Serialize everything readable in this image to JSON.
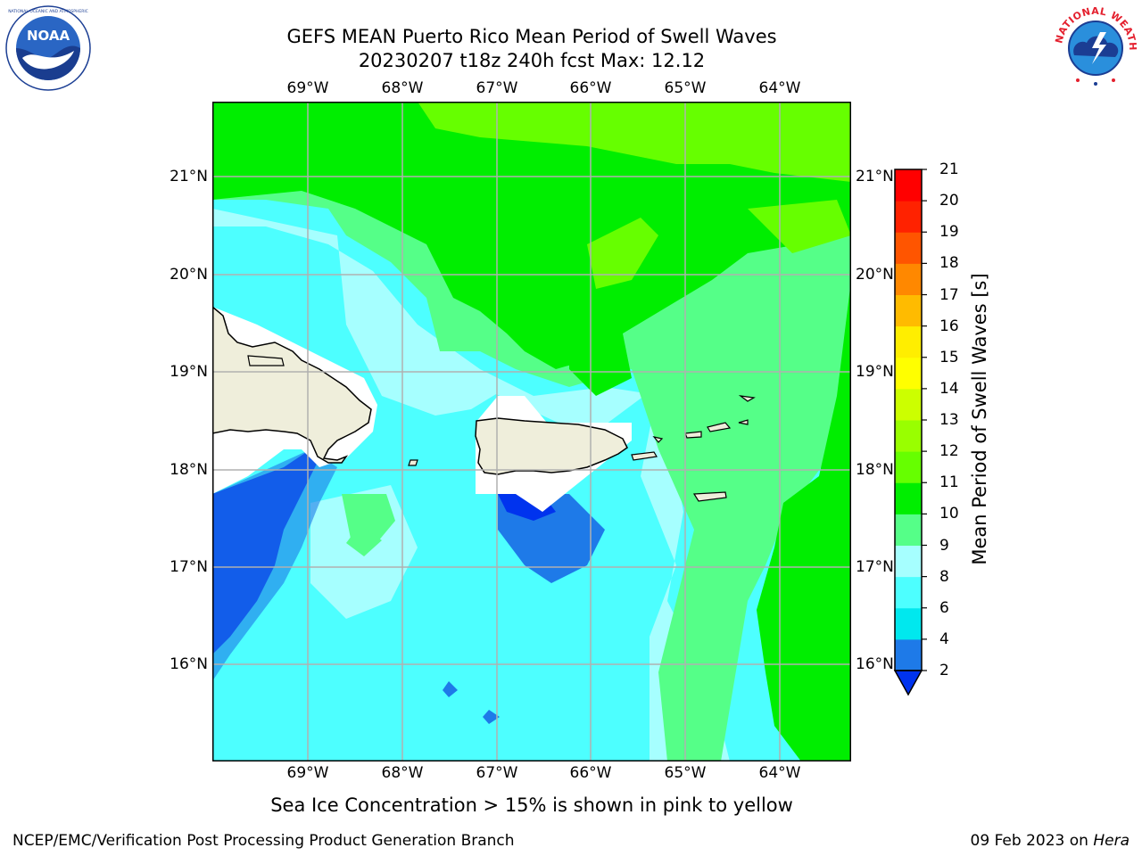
{
  "title_line1": "GEFS MEAN Puerto Rico Mean Period of Swell Waves",
  "title_line2": "20230207 t18z 240h fcst   Max: 12.12",
  "lon_labels": [
    "69°W",
    "68°W",
    "67°W",
    "66°W",
    "65°W",
    "64°W"
  ],
  "lat_labels": [
    "21°N",
    "20°N",
    "19°N",
    "18°N",
    "17°N",
    "16°N"
  ],
  "colorbar": {
    "label": "Mean Period of Swell Waves [s]",
    "ticks": [
      "2",
      "4",
      "6",
      "8",
      "9",
      "10",
      "11",
      "12",
      "13",
      "14",
      "15",
      "16",
      "17",
      "18",
      "19",
      "20",
      "21"
    ],
    "colors": [
      "#0033ee",
      "#1e7ae8",
      "#00e8ee",
      "#4dffff",
      "#a6ffff",
      "#55ff88",
      "#00ee00",
      "#66ff00",
      "#99ff00",
      "#ccff00",
      "#ffff00",
      "#ffee00",
      "#ffbb00",
      "#ff8800",
      "#ff5500",
      "#ff2200",
      "#ff0000"
    ]
  },
  "footnote": "Sea Ice Concentration > 15% is shown in pink to yellow",
  "credit": "NCEP/EMC/Verification Post Processing Product Generation Branch",
  "date_prefix": "09 Feb 2023 on",
  "date_host": "Hera",
  "logos": {
    "left": "NOAA",
    "right": "NATIONAL WEATHER SERVICE"
  },
  "map_data": {
    "lon_range": [
      -70,
      -63.25
    ],
    "lat_range": [
      15,
      21.75
    ],
    "max_value": 12.12,
    "land_color": "#efeedb",
    "mask_color": "#ffffff"
  }
}
